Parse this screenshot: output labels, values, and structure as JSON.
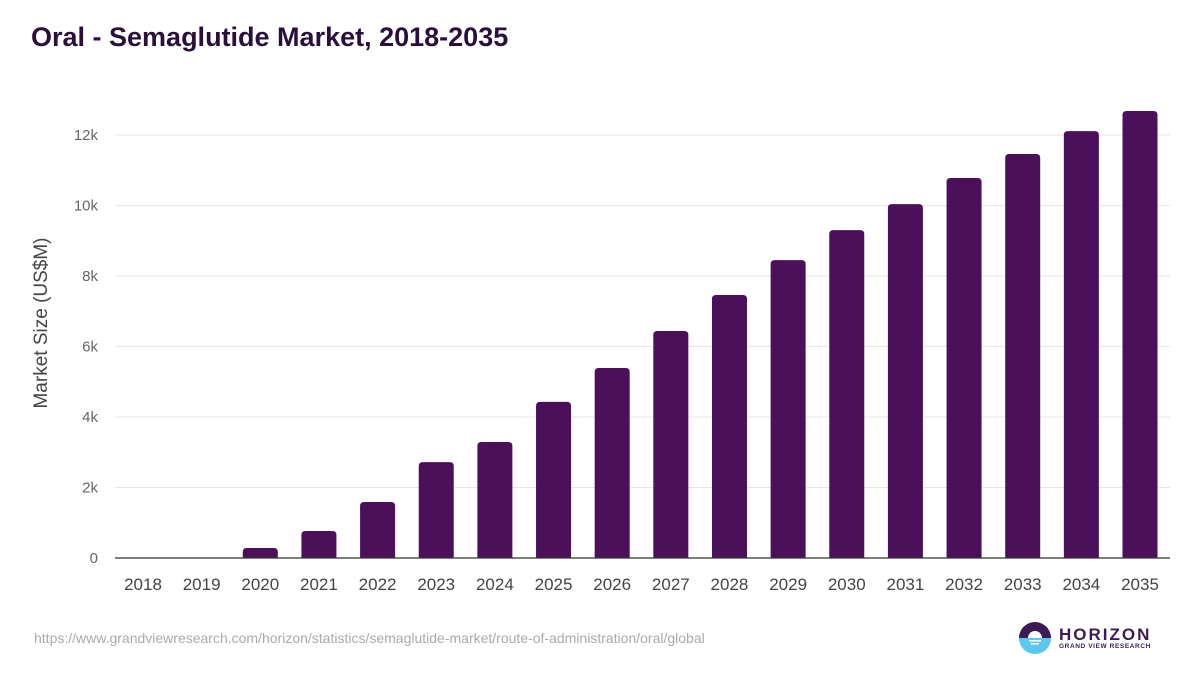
{
  "title": "Oral - Semaglutide Market, 2018-2035",
  "source_url": "https://www.grandviewresearch.com/horizon/statistics/semaglutide-market/route-of-administration/oral/global",
  "logo": {
    "name": "HORIZON",
    "sub": "GRAND VIEW RESEARCH"
  },
  "colors": {
    "bar": "#4b1059",
    "title": "#2a0f3d"
  },
  "chart_data": {
    "type": "bar",
    "title": "Oral - Semaglutide Market, 2018-2035",
    "xlabel": "",
    "ylabel": "Market Size (US$M)",
    "ylim": [
      0,
      12000
    ],
    "yticks": [
      0,
      2000,
      4000,
      6000,
      8000,
      10000,
      12000
    ],
    "ytick_labels": [
      "0",
      "2k",
      "4k",
      "6k",
      "8k",
      "10k",
      "12k"
    ],
    "grid": true,
    "categories": [
      "2018",
      "2019",
      "2020",
      "2021",
      "2022",
      "2023",
      "2024",
      "2025",
      "2026",
      "2027",
      "2028",
      "2029",
      "2030",
      "2031",
      "2032",
      "2033",
      "2034",
      "2035"
    ],
    "values": [
      0,
      0,
      285,
      765,
      1590,
      2720,
      3290,
      4430,
      5390,
      6440,
      7460,
      8450,
      9300,
      10040,
      10780,
      11460,
      12110,
      12680
    ]
  }
}
